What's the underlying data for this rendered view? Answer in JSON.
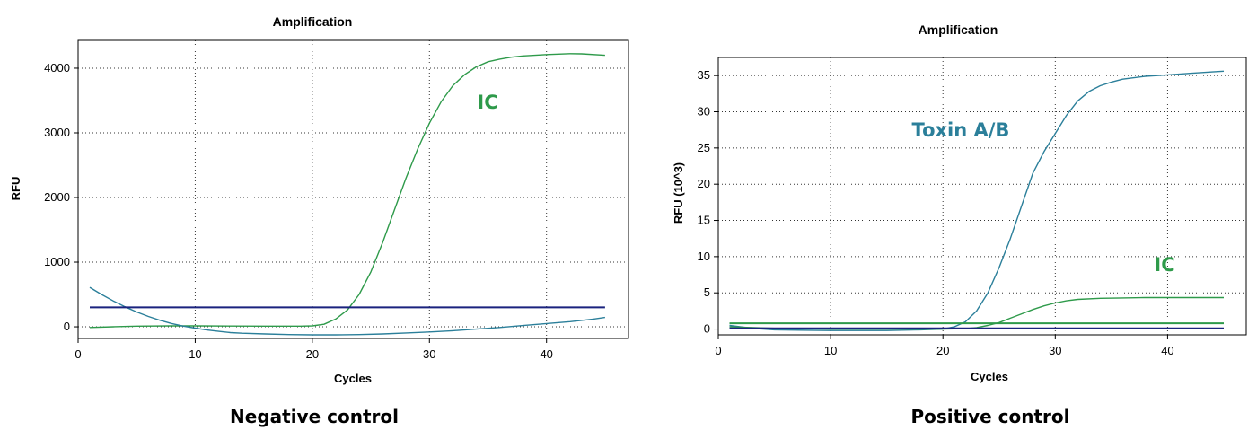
{
  "captions": [
    "Negative control",
    "Positive control"
  ],
  "chart_data": [
    {
      "type": "line",
      "title": "Amplification",
      "xlabel": "Cycles",
      "ylabel": "RFU",
      "xlim": [
        0,
        47
      ],
      "ylim": [
        -180,
        4430
      ],
      "xticks": [
        0,
        10,
        20,
        30,
        40
      ],
      "yticks": [
        0,
        1000,
        2000,
        3000,
        4000
      ],
      "grid": true,
      "series": [
        {
          "name": "IC",
          "color": "#2e9a4a",
          "x": [
            1,
            3,
            5,
            8,
            10,
            13,
            16,
            19,
            20,
            21,
            22,
            23,
            24,
            25,
            26,
            27,
            28,
            29,
            30,
            31,
            32,
            33,
            34,
            35,
            36,
            37,
            38,
            40,
            42,
            43,
            45
          ],
          "y": [
            -10,
            0,
            10,
            15,
            15,
            12,
            10,
            10,
            15,
            40,
            120,
            260,
            500,
            850,
            1300,
            1800,
            2300,
            2750,
            3150,
            3480,
            3730,
            3900,
            4020,
            4100,
            4140,
            4170,
            4190,
            4210,
            4225,
            4222,
            4200
          ]
        },
        {
          "name": "",
          "color": "#2b7f9a",
          "x": [
            1,
            2,
            3,
            4,
            5,
            6,
            7,
            8,
            9,
            10,
            11,
            12,
            13,
            14,
            16,
            18,
            20,
            22,
            24,
            26,
            28,
            30,
            32,
            34,
            36,
            38,
            40,
            42,
            44,
            45
          ],
          "y": [
            610,
            500,
            400,
            310,
            230,
            160,
            100,
            50,
            10,
            -20,
            -50,
            -70,
            -90,
            -100,
            -110,
            -120,
            -125,
            -125,
            -120,
            -110,
            -95,
            -80,
            -60,
            -35,
            -10,
            20,
            50,
            80,
            120,
            145
          ]
        },
        {
          "name": "",
          "color": "#1a237e",
          "x": [
            1,
            45
          ],
          "y": [
            300,
            300
          ]
        }
      ]
    },
    {
      "type": "line",
      "title": "Amplification",
      "xlabel": "Cycles",
      "ylabel": "RFU (10^3)",
      "xlim": [
        0,
        47
      ],
      "ylim": [
        -0.8,
        37.5
      ],
      "xticks": [
        0,
        10,
        20,
        30,
        40
      ],
      "yticks": [
        0,
        5,
        10,
        15,
        20,
        25,
        30,
        35
      ],
      "grid": true,
      "series": [
        {
          "name": "Toxin A/B",
          "color": "#2b7f9a",
          "x": [
            1,
            3,
            5,
            10,
            15,
            18,
            20,
            21,
            22,
            23,
            24,
            25,
            26,
            27,
            28,
            29,
            30,
            31,
            32,
            33,
            34,
            35,
            36,
            38,
            40,
            42,
            44,
            45
          ],
          "y": [
            0.5,
            0.1,
            -0.1,
            -0.2,
            -0.2,
            -0.1,
            0,
            0.3,
            1,
            2.5,
            5,
            8.5,
            12.5,
            17,
            21.5,
            24.5,
            27,
            29.5,
            31.5,
            32.8,
            33.6,
            34.1,
            34.5,
            34.9,
            35.1,
            35.3,
            35.5,
            35.6
          ]
        },
        {
          "name": "IC",
          "color": "#2e9a4a",
          "x": [
            1,
            5,
            10,
            15,
            20,
            22,
            23,
            24,
            25,
            26,
            27,
            28,
            29,
            30,
            31,
            32,
            34,
            36,
            38,
            40,
            45
          ],
          "y": [
            0.3,
            0.1,
            0,
            0,
            0,
            0.05,
            0.2,
            0.5,
            0.9,
            1.5,
            2.1,
            2.7,
            3.2,
            3.6,
            3.9,
            4.1,
            4.25,
            4.3,
            4.35,
            4.35,
            4.35
          ]
        },
        {
          "name": "",
          "color": "#2e9a4a",
          "x": [
            1,
            45
          ],
          "y": [
            0.8,
            0.8
          ]
        },
        {
          "name": "",
          "color": "#1a237e",
          "x": [
            1,
            45
          ],
          "y": [
            0.1,
            0.1
          ]
        }
      ]
    }
  ]
}
